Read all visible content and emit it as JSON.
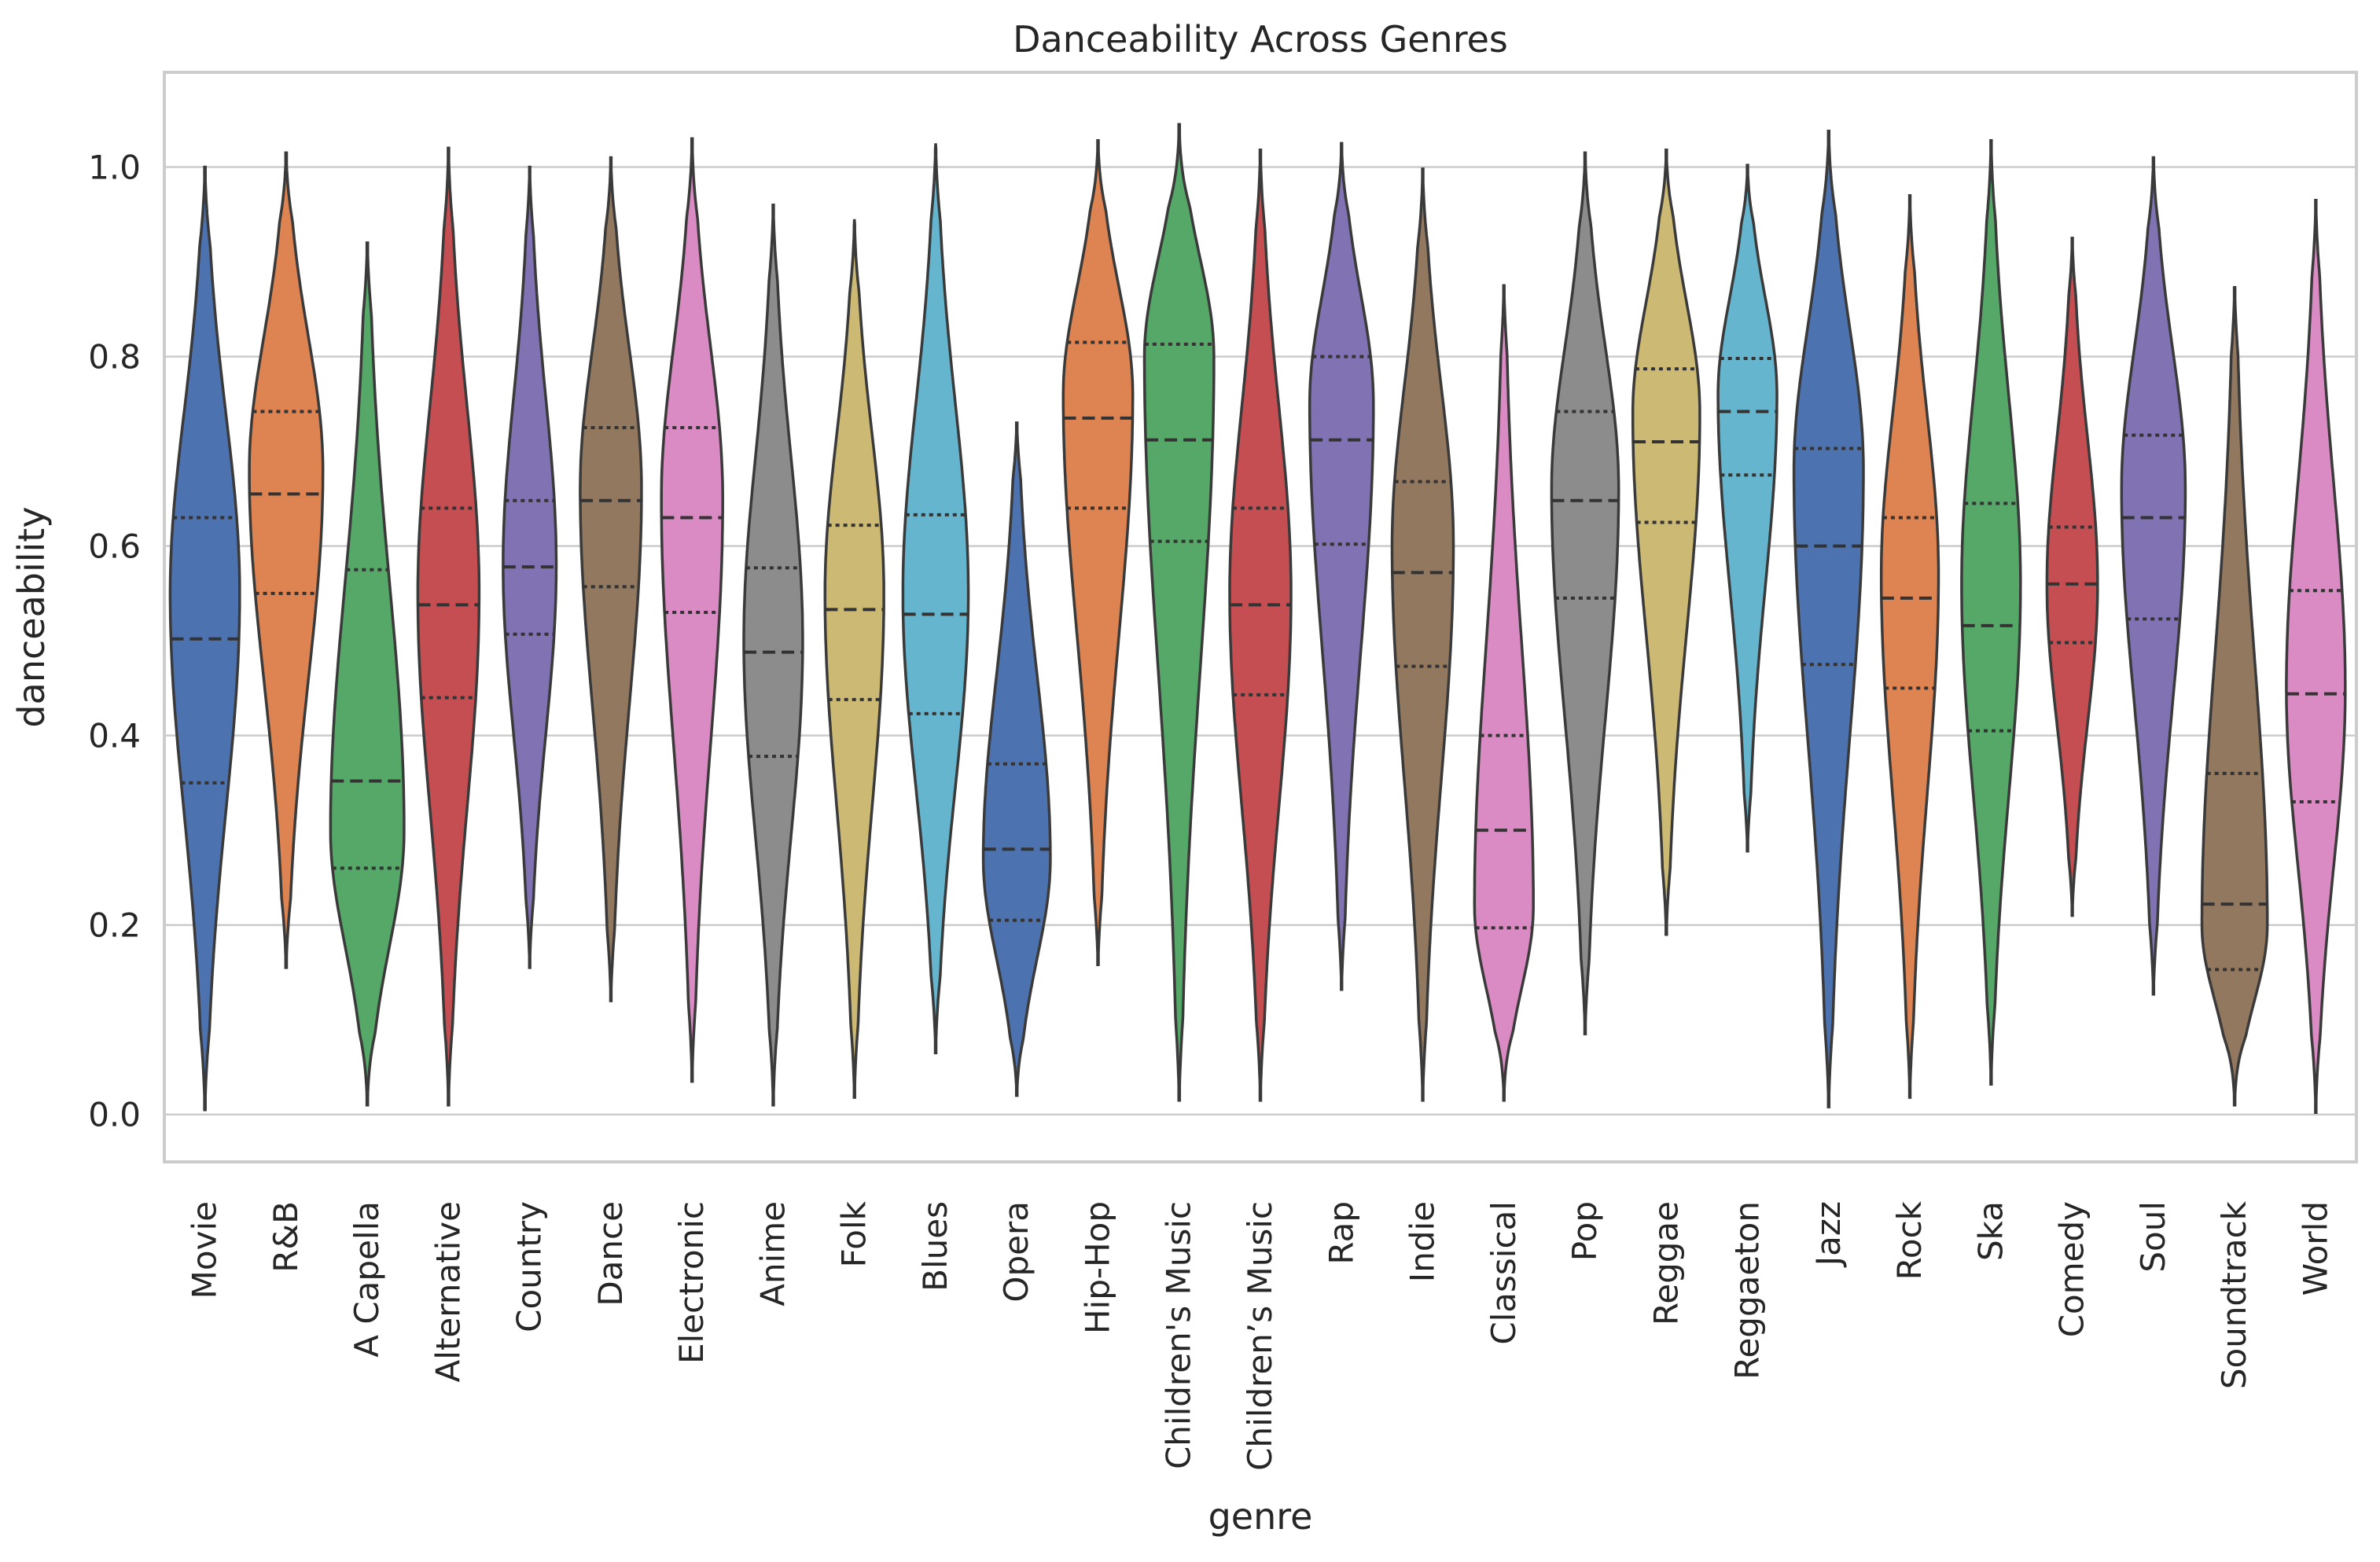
{
  "chart_data": {
    "type": "violin",
    "title": "Danceability Across Genres",
    "xlabel": "genre",
    "ylabel": "danceability",
    "ylim": [
      -0.05,
      1.1
    ],
    "yticks": [
      0.0,
      0.2,
      0.4,
      0.6,
      0.8,
      1.0
    ],
    "ytick_labels": [
      "0.0",
      "0.2",
      "0.4",
      "0.6",
      "0.8",
      "1.0"
    ],
    "grid": true,
    "inner": "quartile",
    "palette": [
      "#4c72b0",
      "#dd8452",
      "#55a868",
      "#c44e52",
      "#8172b3",
      "#937860",
      "#da8bc3",
      "#8c8c8c",
      "#ccb974",
      "#64b5cd"
    ],
    "series": [
      {
        "category": "Movie",
        "min": 0.005,
        "max": 1.0,
        "q1": 0.35,
        "median": 0.502,
        "q3": 0.63,
        "peak": 0.55,
        "bw": 0.85,
        "color": "#4c72b0"
      },
      {
        "category": "R&B",
        "min": 0.155,
        "max": 1.015,
        "q1": 0.55,
        "median": 0.655,
        "q3": 0.742,
        "peak": 0.68,
        "bw": 0.9,
        "color": "#dd8452"
      },
      {
        "category": "A Capella",
        "min": 0.01,
        "max": 0.92,
        "q1": 0.26,
        "median": 0.352,
        "q3": 0.575,
        "peak": 0.3,
        "bw": 0.9,
        "color": "#55a868"
      },
      {
        "category": "Alternative",
        "min": 0.01,
        "max": 1.02,
        "q1": 0.44,
        "median": 0.538,
        "q3": 0.64,
        "peak": 0.55,
        "bw": 0.75,
        "color": "#c44e52"
      },
      {
        "category": "Country",
        "min": 0.155,
        "max": 1.0,
        "q1": 0.507,
        "median": 0.578,
        "q3": 0.648,
        "peak": 0.58,
        "bw": 0.65,
        "color": "#8172b3"
      },
      {
        "category": "Dance",
        "min": 0.12,
        "max": 1.01,
        "q1": 0.557,
        "median": 0.648,
        "q3": 0.725,
        "peak": 0.66,
        "bw": 0.75,
        "color": "#937860"
      },
      {
        "category": "Electronic",
        "min": 0.035,
        "max": 1.03,
        "q1": 0.53,
        "median": 0.63,
        "q3": 0.725,
        "peak": 0.65,
        "bw": 0.75,
        "color": "#da8bc3"
      },
      {
        "category": "Anime",
        "min": 0.01,
        "max": 0.96,
        "q1": 0.378,
        "median": 0.488,
        "q3": 0.577,
        "peak": 0.5,
        "bw": 0.72,
        "color": "#8c8c8c"
      },
      {
        "category": "Folk",
        "min": 0.018,
        "max": 0.945,
        "q1": 0.438,
        "median": 0.533,
        "q3": 0.622,
        "peak": 0.55,
        "bw": 0.72,
        "color": "#ccb974"
      },
      {
        "category": "Blues",
        "min": 0.065,
        "max": 1.025,
        "q1": 0.423,
        "median": 0.528,
        "q3": 0.633,
        "peak": 0.55,
        "bw": 0.8,
        "color": "#64b5cd"
      },
      {
        "category": "Opera",
        "min": 0.02,
        "max": 0.73,
        "q1": 0.205,
        "median": 0.28,
        "q3": 0.37,
        "peak": 0.27,
        "bw": 0.82,
        "color": "#4c72b0"
      },
      {
        "category": "Hip-Hop",
        "min": 0.158,
        "max": 1.028,
        "q1": 0.64,
        "median": 0.735,
        "q3": 0.815,
        "peak": 0.76,
        "bw": 0.85,
        "color": "#dd8452"
      },
      {
        "category": "Children's Music",
        "min": 0.015,
        "max": 1.045,
        "q1": 0.605,
        "median": 0.712,
        "q3": 0.813,
        "peak": 0.8,
        "bw": 0.85,
        "color": "#55a868"
      },
      {
        "category": "Children’s Music",
        "min": 0.015,
        "max": 1.018,
        "q1": 0.443,
        "median": 0.538,
        "q3": 0.64,
        "peak": 0.55,
        "bw": 0.75,
        "color": "#c44e52"
      },
      {
        "category": "Rap",
        "min": 0.132,
        "max": 1.025,
        "q1": 0.602,
        "median": 0.712,
        "q3": 0.8,
        "peak": 0.75,
        "bw": 0.78,
        "color": "#8172b3"
      },
      {
        "category": "Indie",
        "min": 0.015,
        "max": 0.998,
        "q1": 0.473,
        "median": 0.572,
        "q3": 0.668,
        "peak": 0.6,
        "bw": 0.75,
        "color": "#937860"
      },
      {
        "category": "Classical",
        "min": 0.015,
        "max": 0.875,
        "q1": 0.197,
        "median": 0.3,
        "q3": 0.4,
        "peak": 0.22,
        "bw": 0.72,
        "color": "#da8bc3"
      },
      {
        "category": "Pop",
        "min": 0.085,
        "max": 1.015,
        "q1": 0.545,
        "median": 0.648,
        "q3": 0.742,
        "peak": 0.66,
        "bw": 0.82,
        "color": "#8c8c8c"
      },
      {
        "category": "Reggae",
        "min": 0.19,
        "max": 1.018,
        "q1": 0.625,
        "median": 0.71,
        "q3": 0.787,
        "peak": 0.74,
        "bw": 0.82,
        "color": "#ccb974"
      },
      {
        "category": "Reggaeton",
        "min": 0.278,
        "max": 1.002,
        "q1": 0.675,
        "median": 0.742,
        "q3": 0.798,
        "peak": 0.76,
        "bw": 0.72,
        "color": "#64b5cd"
      },
      {
        "category": "Jazz",
        "min": 0.008,
        "max": 1.038,
        "q1": 0.475,
        "median": 0.6,
        "q3": 0.703,
        "peak": 0.68,
        "bw": 0.85,
        "color": "#4c72b0"
      },
      {
        "category": "Rock",
        "min": 0.018,
        "max": 0.97,
        "q1": 0.45,
        "median": 0.545,
        "q3": 0.63,
        "peak": 0.57,
        "bw": 0.7,
        "color": "#dd8452"
      },
      {
        "category": "Ska",
        "min": 0.032,
        "max": 1.028,
        "q1": 0.405,
        "median": 0.516,
        "q3": 0.645,
        "peak": 0.56,
        "bw": 0.72,
        "color": "#55a868"
      },
      {
        "category": "Comedy",
        "min": 0.21,
        "max": 0.925,
        "q1": 0.498,
        "median": 0.56,
        "q3": 0.62,
        "peak": 0.56,
        "bw": 0.62,
        "color": "#c44e52"
      },
      {
        "category": "Soul",
        "min": 0.127,
        "max": 1.01,
        "q1": 0.523,
        "median": 0.63,
        "q3": 0.717,
        "peak": 0.66,
        "bw": 0.78,
        "color": "#8172b3"
      },
      {
        "category": "Soundtrack",
        "min": 0.01,
        "max": 0.873,
        "q1": 0.153,
        "median": 0.222,
        "q3": 0.36,
        "peak": 0.2,
        "bw": 0.8,
        "color": "#937860"
      },
      {
        "category": "World",
        "min": 0.002,
        "max": 0.965,
        "q1": 0.33,
        "median": 0.444,
        "q3": 0.553,
        "peak": 0.45,
        "bw": 0.72,
        "color": "#da8bc3"
      }
    ]
  }
}
